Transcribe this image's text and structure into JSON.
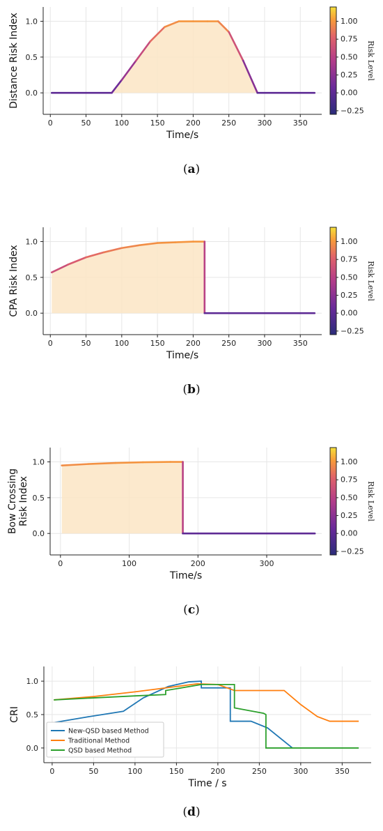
{
  "colorbar": {
    "label": "Risk Level",
    "ticks": [
      "1.00",
      "0.75",
      "0.50",
      "0.25",
      "0.00",
      "−0.25"
    ],
    "range": [
      -0.3,
      1.2
    ]
  },
  "chart_data": [
    {
      "id": "a",
      "type": "area",
      "caption_letter": "a",
      "ylabel": "Distance Risk Index",
      "xlabel": "Time/s",
      "xlim": [
        -10,
        380
      ],
      "ylim": [
        -0.3,
        1.2
      ],
      "xticks": [
        0,
        50,
        100,
        150,
        200,
        250,
        300,
        350
      ],
      "yticks": [
        0.0,
        0.5,
        1.0
      ],
      "series": [
        {
          "x": [
            2,
            86,
            100,
            120,
            140,
            160,
            180,
            200,
            220,
            235,
            250,
            270,
            290,
            370
          ],
          "y": [
            0,
            0,
            0.18,
            0.45,
            0.72,
            0.92,
            1.0,
            1.0,
            1.0,
            1.0,
            0.85,
            0.45,
            0,
            0
          ]
        }
      ]
    },
    {
      "id": "b",
      "type": "area",
      "caption_letter": "b",
      "ylabel": "CPA Risk Index",
      "xlabel": "Time/s",
      "xlim": [
        -10,
        380
      ],
      "ylim": [
        -0.3,
        1.2
      ],
      "xticks": [
        0,
        50,
        100,
        150,
        200,
        250,
        300,
        350
      ],
      "yticks": [
        0.0,
        0.5,
        1.0
      ],
      "series": [
        {
          "x": [
            2,
            25,
            50,
            75,
            100,
            125,
            150,
            175,
            200,
            216,
            216,
            370
          ],
          "y": [
            0.57,
            0.68,
            0.78,
            0.85,
            0.91,
            0.95,
            0.98,
            0.99,
            1.0,
            1.0,
            0,
            0
          ]
        }
      ]
    },
    {
      "id": "c",
      "type": "area",
      "caption_letter": "c",
      "ylabel_lines": [
        "Bow Crossing",
        "Risk Index"
      ],
      "xlabel": "Time/s",
      "xlim": [
        -15,
        380
      ],
      "ylim": [
        -0.3,
        1.2
      ],
      "xticks": [
        0,
        100,
        200,
        300
      ],
      "yticks": [
        0.0,
        0.5,
        1.0
      ],
      "series": [
        {
          "x": [
            2,
            40,
            80,
            120,
            160,
            178,
            178,
            370
          ],
          "y": [
            0.95,
            0.97,
            0.985,
            0.995,
            1.0,
            1.0,
            0,
            0
          ]
        }
      ]
    },
    {
      "id": "d",
      "type": "line",
      "caption_letter": "d",
      "ylabel": "CRI",
      "xlabel": "Time / s",
      "xlim": [
        -10,
        385
      ],
      "ylim": [
        -0.22,
        1.22
      ],
      "xticks": [
        0,
        50,
        100,
        150,
        200,
        250,
        300,
        350
      ],
      "yticks": [
        0.0,
        0.5,
        1.0
      ],
      "legend": "lower-left",
      "series": [
        {
          "name": "New-QSD based Method",
          "color": "#1f77b4",
          "x": [
            2,
            40,
            86,
            110,
            140,
            165,
            180,
            180,
            215,
            215,
            240,
            260,
            290
          ],
          "y": [
            0.38,
            0.46,
            0.55,
            0.75,
            0.92,
            0.99,
            1.0,
            0.9,
            0.9,
            0.4,
            0.4,
            0.3,
            0.0
          ]
        },
        {
          "name": "Traditional Method",
          "color": "#ff7f0e",
          "x": [
            2,
            50,
            100,
            150,
            175,
            200,
            220,
            250,
            280,
            300,
            320,
            335,
            370
          ],
          "y": [
            0.72,
            0.77,
            0.84,
            0.92,
            0.96,
            0.95,
            0.86,
            0.86,
            0.86,
            0.65,
            0.47,
            0.4,
            0.4
          ]
        },
        {
          "name": "QSD based Method",
          "color": "#2ca02c",
          "x": [
            2,
            50,
            100,
            137,
            137,
            180,
            220,
            220,
            255,
            258,
            258,
            370
          ],
          "y": [
            0.72,
            0.75,
            0.78,
            0.8,
            0.86,
            0.95,
            0.95,
            0.6,
            0.52,
            0.5,
            0.0,
            0.0
          ]
        }
      ]
    }
  ]
}
